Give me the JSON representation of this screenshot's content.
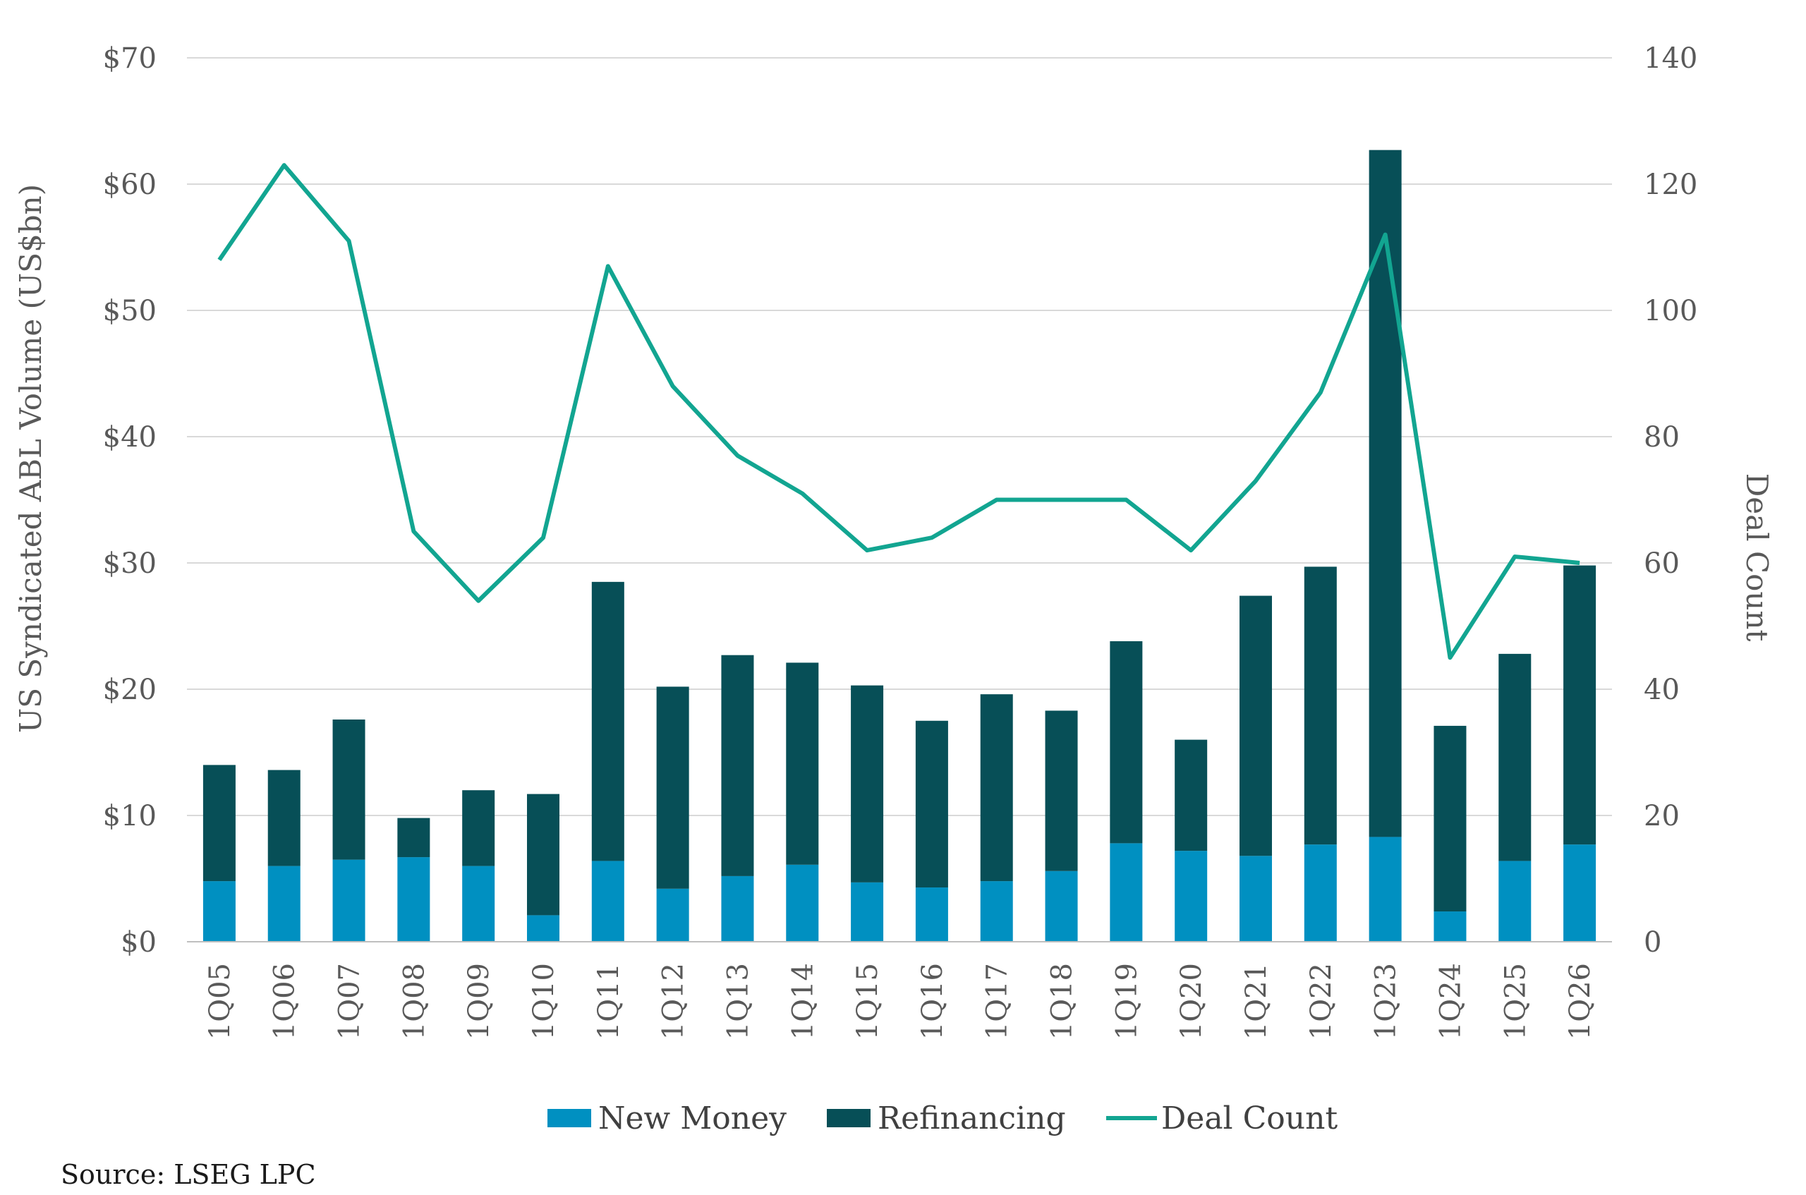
{
  "chart_data": {
    "type": "bar",
    "stacked": true,
    "categories": [
      "1Q05",
      "1Q06",
      "1Q07",
      "1Q08",
      "1Q09",
      "1Q10",
      "1Q11",
      "1Q12",
      "1Q13",
      "1Q14",
      "1Q15",
      "1Q16",
      "1Q17",
      "1Q18",
      "1Q19",
      "1Q20",
      "1Q21",
      "1Q22",
      "1Q23",
      "1Q24",
      "1Q25",
      "1Q26"
    ],
    "series": [
      {
        "name": "New Money",
        "type": "bar",
        "axis": "left",
        "color": "#0090c1",
        "values": [
          4.8,
          6.0,
          6.5,
          6.7,
          6.0,
          2.1,
          6.4,
          4.2,
          5.2,
          6.1,
          4.7,
          4.3,
          4.8,
          5.6,
          7.8,
          7.2,
          6.8,
          7.7,
          8.3,
          2.4,
          6.4,
          7.7
        ]
      },
      {
        "name": "Refinancing",
        "type": "bar",
        "axis": "left",
        "color": "#074f57",
        "values": [
          9.2,
          7.6,
          11.1,
          3.1,
          6.0,
          9.6,
          22.1,
          16.0,
          17.5,
          16.0,
          15.6,
          13.2,
          14.8,
          12.7,
          16.0,
          8.8,
          20.6,
          22.0,
          54.4,
          14.7,
          16.4,
          22.1
        ]
      },
      {
        "name": "Deal Count",
        "type": "line",
        "axis": "right",
        "color": "#12a591",
        "values": [
          108,
          123,
          111,
          65,
          54,
          64,
          107,
          88,
          77,
          71,
          62,
          64,
          70,
          70,
          70,
          62,
          73,
          87,
          112,
          45,
          61,
          60
        ]
      }
    ],
    "ylabel": "US Syndicated ABL Volume (US$bn)",
    "y2label": "Deal Count",
    "ylim": [
      0,
      70
    ],
    "y2lim": [
      0,
      140
    ],
    "yticks": [
      "$0",
      "$10",
      "$20",
      "$30",
      "$40",
      "$50",
      "$60",
      "$70"
    ],
    "y2ticks": [
      "0",
      "20",
      "40",
      "60",
      "80",
      "100",
      "120",
      "140"
    ],
    "grid": true,
    "legend": "bottom-center"
  },
  "source": "Source: LSEG LPC"
}
